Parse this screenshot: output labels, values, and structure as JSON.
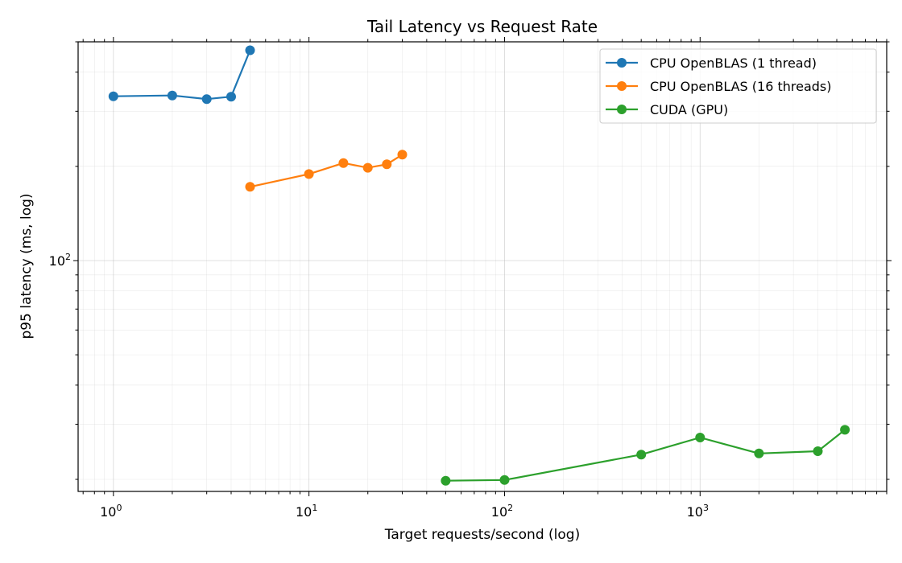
{
  "chart_data": {
    "type": "line",
    "title": "Tail Latency vs Request Rate",
    "xlabel": "Target requests/second (log)",
    "ylabel": "p95 latency (ms, log)",
    "xscale": "log",
    "yscale": "log",
    "xlim": [
      0.66,
      9000
    ],
    "ylim": [
      18.3,
      500
    ],
    "x_tick_labels": [
      {
        "base": "10",
        "exp": "0"
      },
      {
        "base": "10",
        "exp": "1"
      },
      {
        "base": "10",
        "exp": "2"
      },
      {
        "base": "10",
        "exp": "3"
      }
    ],
    "y_tick_labels": [
      {
        "base": "10",
        "exp": "2"
      }
    ],
    "grid": "both (major and minor)",
    "legend_position": "top-right",
    "series": [
      {
        "name": "CPU OpenBLAS (1 thread)",
        "color": "#1f77b4",
        "marker": "circle",
        "x": [
          1,
          2,
          3,
          4,
          5
        ],
        "y": [
          335,
          337,
          328,
          334,
          470
        ]
      },
      {
        "name": "CPU OpenBLAS (16 threads)",
        "color": "#ff7f0e",
        "marker": "circle",
        "x": [
          5,
          10,
          15,
          20,
          25,
          30
        ],
        "y": [
          172,
          189,
          205,
          198,
          203,
          218
        ]
      },
      {
        "name": "CUDA (GPU)",
        "color": "#2ca02c",
        "marker": "circle",
        "x": [
          50,
          100,
          500,
          1000,
          2000,
          4000,
          5500
        ],
        "y": [
          19.8,
          19.9,
          24.0,
          27.2,
          24.2,
          24.6,
          28.8
        ]
      }
    ]
  }
}
